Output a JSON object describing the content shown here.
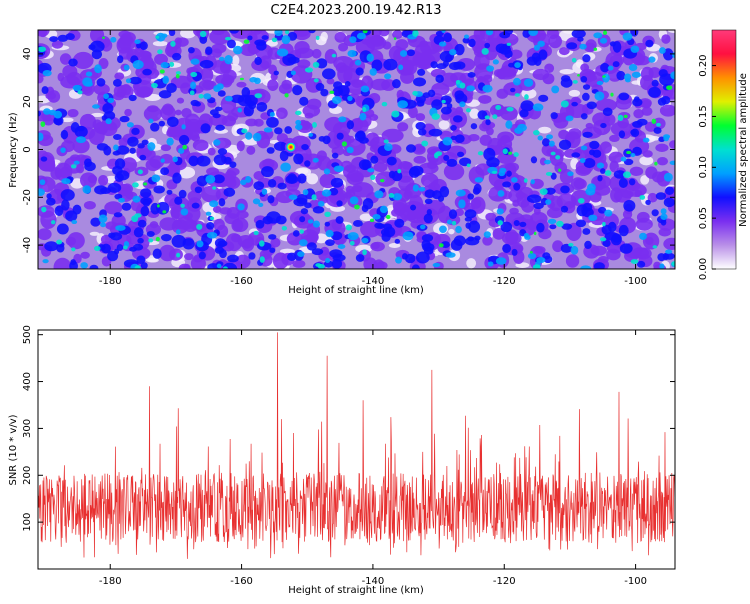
{
  "title": "C2E4.2023.200.19.42.R13",
  "colors": {
    "snr_line": "#e83030",
    "colormap": [
      "#ffffff",
      "#b98fe8",
      "#7a2ff0",
      "#1010ff",
      "#00a0ff",
      "#00e0d0",
      "#00ff30",
      "#e0f000",
      "#ff9000",
      "#ff1040",
      "#ff3a7a"
    ]
  },
  "chart_data": [
    {
      "type": "heatmap",
      "xlabel": "Height of straight line (km)",
      "ylabel": "Frequency (Hz)",
      "xlim": [
        -191,
        -94
      ],
      "ylim": [
        -50,
        50
      ],
      "x_ticks": [
        -180,
        -160,
        -140,
        -120,
        -100
      ],
      "y_ticks": [
        -40,
        -20,
        0,
        20,
        40
      ],
      "x_tick_labels": [
        "-180",
        "-160",
        "-140",
        "-120",
        "-100"
      ],
      "y_tick_labels": [
        "-40",
        "-20",
        "0",
        "20",
        "40"
      ],
      "colorbar": {
        "label": "Normalized spectral amplitude",
        "range": [
          0,
          0.235
        ],
        "ticks": [
          0.0,
          0.05,
          0.1,
          0.15,
          0.2
        ],
        "tick_labels": [
          "0.00",
          "0.05",
          "0.10",
          "0.15",
          "0.20"
        ]
      },
      "peak": {
        "x": -152.5,
        "y": 1,
        "value": 0.235
      },
      "background_level": 0.03
    },
    {
      "type": "line",
      "xlabel": "Height of straight line (km)",
      "ylabel": "SNR (10 * v/v)",
      "xlim": [
        -191,
        -94
      ],
      "ylim": [
        0,
        510
      ],
      "x_ticks": [
        -180,
        -160,
        -140,
        -120,
        -100
      ],
      "y_ticks": [
        100,
        200,
        300,
        400,
        500
      ],
      "x_tick_labels": [
        "-180",
        "-160",
        "-140",
        "-120",
        "-100"
      ],
      "y_tick_labels": [
        "100",
        "200",
        "300",
        "400",
        "500"
      ],
      "baseline_mean": 130,
      "peaks": [
        {
          "x": -154.5,
          "y": 505
        },
        {
          "x": -147,
          "y": 455
        },
        {
          "x": -131,
          "y": 425
        },
        {
          "x": -174,
          "y": 390
        },
        {
          "x": -102.5,
          "y": 378
        },
        {
          "x": -141.5,
          "y": 360
        }
      ]
    }
  ]
}
